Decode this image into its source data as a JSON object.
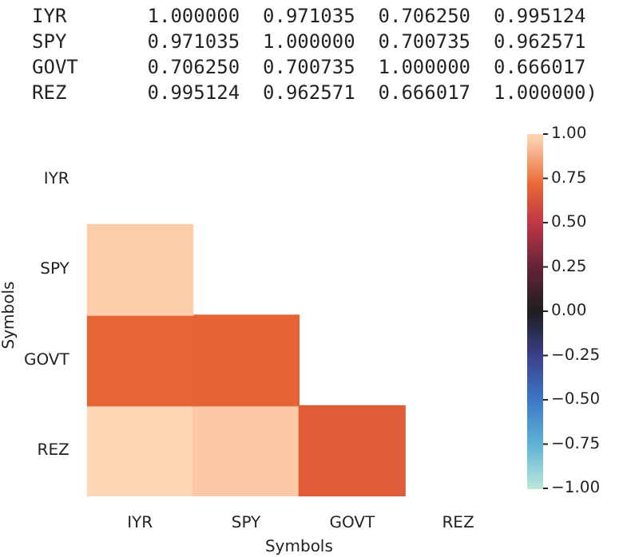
{
  "chart_data": {
    "type": "heatmap",
    "xlabel": "Symbols",
    "ylabel": "Symbols",
    "categories": [
      "IYR",
      "SPY",
      "GOVT",
      "REZ"
    ],
    "y_categories": [
      "IYR",
      "SPY",
      "GOVT",
      "REZ"
    ],
    "cells": [
      [
        null,
        null,
        null,
        null
      ],
      [
        0.971035,
        null,
        null,
        null
      ],
      [
        0.70625,
        0.700735,
        null,
        null
      ],
      [
        0.995124,
        0.962571,
        0.666017,
        null
      ]
    ],
    "clim": [
      -1,
      1
    ],
    "cticks": [
      {
        "value": -1,
        "label": "−1.00"
      },
      {
        "value": -0.75,
        "label": "−0.75"
      },
      {
        "value": -0.5,
        "label": "−0.50"
      },
      {
        "value": -0.25,
        "label": "−0.25"
      },
      {
        "value": 0,
        "label": "0.00"
      },
      {
        "value": 0.25,
        "label": "0.25"
      },
      {
        "value": 0.5,
        "label": "0.50"
      },
      {
        "value": 0.75,
        "label": "0.75"
      },
      {
        "value": 1,
        "label": "1.00"
      }
    ],
    "annotations": [
      "IYR       1.000000  0.971035  0.706250  0.995124",
      "SPY       0.971035  1.000000  0.700735  0.962571",
      "GOVT      0.706250  0.700735  1.000000  0.666017",
      "REZ       0.995124  0.962571  0.666017  1.000000)"
    ]
  }
}
